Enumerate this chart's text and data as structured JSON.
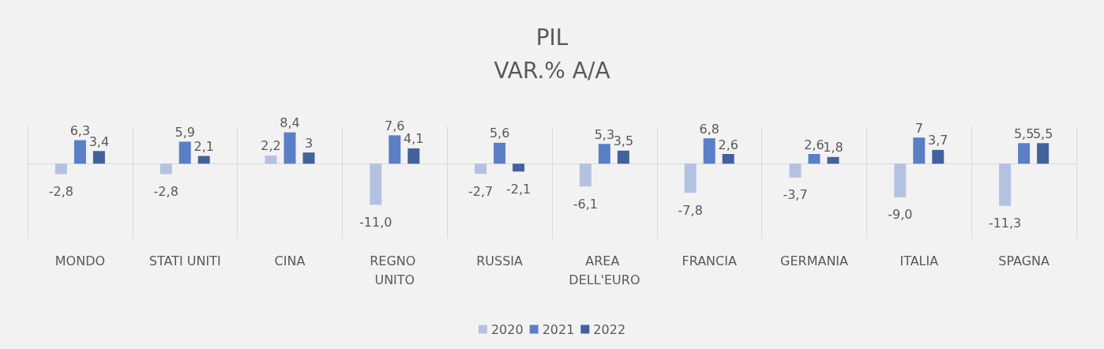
{
  "chart_data": {
    "type": "bar",
    "title": "PIL",
    "subtitle": "VAR.% A/A",
    "categories": [
      "MONDO",
      "STATI UNITI",
      "CINA",
      "REGNO UNITO",
      "RUSSIA",
      "AREA DELL'EURO",
      "FRANCIA",
      "GERMANIA",
      "ITALIA",
      "SPAGNA"
    ],
    "series": [
      {
        "name": "2020",
        "color": "#b4c2e2",
        "values": [
          -2.8,
          -2.8,
          2.2,
          -11.0,
          -2.7,
          -6.1,
          -7.8,
          -3.7,
          -9.0,
          -11.3
        ],
        "value_labels": [
          "-2,8",
          "-2,8",
          "2,2",
          "-11,0",
          "-2,7",
          "-6,1",
          "-7,8",
          "-3,7",
          "-9,0",
          "-11,3"
        ]
      },
      {
        "name": "2021",
        "color": "#5b7fc7",
        "values": [
          6.3,
          5.9,
          8.4,
          7.6,
          5.6,
          5.3,
          6.8,
          2.6,
          7,
          5.5
        ],
        "value_labels": [
          "6,3",
          "5,9",
          "8,4",
          "7,6",
          "5,6",
          "5,3",
          "6,8",
          "2,6",
          "7",
          "5,5"
        ]
      },
      {
        "name": "2022",
        "color": "#43629c",
        "values": [
          3.4,
          2.1,
          3,
          4.1,
          -2.1,
          3.5,
          2.6,
          1.8,
          3.7,
          5.5
        ],
        "value_labels": [
          "3,4",
          "2,1",
          "3",
          "4,1",
          "-2,1",
          "3,5",
          "2,6",
          "1,8",
          "3,7",
          "5,5"
        ]
      }
    ],
    "grid": "x",
    "legend": "bottom"
  }
}
